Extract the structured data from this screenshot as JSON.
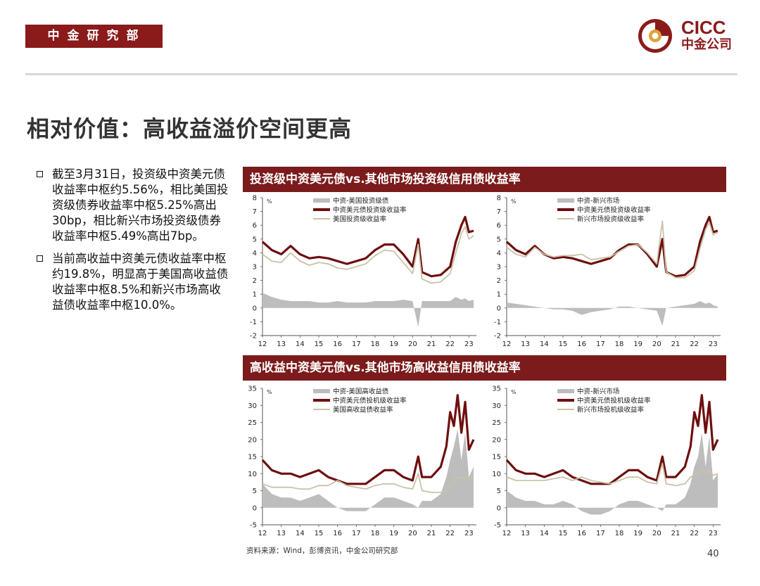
{
  "header": {
    "badge_text": "中金研究部",
    "logo_en": "CICC",
    "logo_cn": "中金公司"
  },
  "page_title": "相对价值：高收益溢价空间更高",
  "bullets": [
    "截至3月31日，投资级中资美元债收益率中枢约5.56%，相比美国投资级债券收益率中枢5.25%高出30bp，相比新兴市场投资级债券收益率中枢5.49%高出7bp。",
    "当前高收益中资美元债收益率中枢约19.8%，明显高于美国高收益债收益率中枢8.5%和新兴市场高收益债收益率中枢10.0%。"
  ],
  "panels": {
    "top_title": "投资级中资美元债vs.其他市场投资级信用债收益率",
    "bottom_title": "高收益中资美元债vs.其他市场高收益信用债收益率"
  },
  "footer": {
    "source": "资料来源：Wind，彭博资讯，中金公司研究部",
    "page_number": "40"
  },
  "colors": {
    "brand": "#8b1a1a",
    "china_line": "#6e0f0f",
    "other_line": "#c9c2a8",
    "spread_area": "#bdbdbd"
  },
  "chart_data": [
    {
      "type": "line",
      "unit": "%",
      "ylim": [
        -2,
        8
      ],
      "yticks": [
        -2,
        -1,
        0,
        1,
        2,
        3,
        4,
        5,
        6,
        7,
        8
      ],
      "xticks": [
        "12",
        "13",
        "14",
        "15",
        "16",
        "17",
        "18",
        "19",
        "20",
        "21",
        "22",
        "23"
      ],
      "x": [
        12,
        12.5,
        13,
        13.5,
        14,
        14.5,
        15,
        15.5,
        16,
        16.5,
        17,
        17.5,
        18,
        18.5,
        19,
        19.5,
        20,
        20.3,
        20.5,
        21,
        21.5,
        22,
        22.3,
        22.6,
        22.8,
        23,
        23.25
      ],
      "series": [
        {
          "name": "中资-美国投资级债",
          "kind": "area",
          "values": [
            1.1,
            0.8,
            0.6,
            0.5,
            0.5,
            0.5,
            0.4,
            0.4,
            0.5,
            0.4,
            0.4,
            0.4,
            0.5,
            0.5,
            0.5,
            0.6,
            0.5,
            -1.4,
            0.5,
            0.5,
            0.5,
            0.5,
            0.8,
            0.6,
            0.7,
            0.5,
            0.6
          ]
        },
        {
          "name": "中资美元债投资级收益率",
          "kind": "line",
          "values": [
            4.8,
            4.2,
            3.9,
            4.5,
            3.9,
            3.6,
            3.7,
            3.6,
            3.4,
            3.2,
            3.4,
            3.6,
            4.2,
            4.6,
            4.6,
            3.9,
            3.0,
            5.0,
            2.6,
            2.3,
            2.4,
            3.0,
            4.8,
            6.0,
            6.6,
            5.5,
            5.6
          ]
        },
        {
          "name": "美国投资级收益率",
          "kind": "line",
          "values": [
            3.9,
            3.4,
            3.3,
            4.0,
            3.4,
            3.1,
            3.3,
            3.2,
            2.9,
            2.8,
            3.0,
            3.2,
            3.8,
            4.2,
            4.1,
            3.3,
            2.5,
            4.6,
            2.1,
            1.8,
            1.9,
            2.5,
            4.0,
            5.4,
            5.9,
            5.0,
            5.25
          ]
        }
      ]
    },
    {
      "type": "line",
      "unit": "%",
      "ylim": [
        -2,
        8
      ],
      "yticks": [
        -2,
        -1,
        0,
        1,
        2,
        3,
        4,
        5,
        6,
        7,
        8
      ],
      "xticks": [
        "12",
        "13",
        "14",
        "15",
        "16",
        "17",
        "18",
        "19",
        "20",
        "21",
        "22",
        "23"
      ],
      "x": [
        12,
        12.5,
        13,
        13.5,
        14,
        14.5,
        15,
        15.5,
        16,
        16.5,
        17,
        17.5,
        18,
        18.5,
        19,
        19.5,
        20,
        20.3,
        20.5,
        21,
        21.5,
        22,
        22.3,
        22.6,
        22.8,
        23,
        23.25
      ],
      "series": [
        {
          "name": "中资-新兴市场",
          "kind": "area",
          "values": [
            0.4,
            0.3,
            0.2,
            0.1,
            0.0,
            -0.1,
            -0.1,
            -0.2,
            -0.5,
            -0.3,
            -0.2,
            -0.1,
            0.1,
            0.1,
            0.0,
            -0.1,
            -0.2,
            -1.3,
            0.0,
            0.1,
            0.2,
            0.3,
            0.5,
            0.3,
            0.4,
            0.2,
            0.1
          ]
        },
        {
          "name": "中资美元债投资级收益率",
          "kind": "line",
          "values": [
            4.8,
            4.2,
            3.9,
            4.5,
            3.9,
            3.6,
            3.7,
            3.6,
            3.4,
            3.2,
            3.4,
            3.6,
            4.2,
            4.6,
            4.6,
            3.9,
            3.0,
            5.0,
            2.6,
            2.3,
            2.4,
            3.0,
            4.8,
            6.0,
            6.6,
            5.5,
            5.6
          ]
        },
        {
          "name": "新兴市场投资级收益率",
          "kind": "line",
          "values": [
            4.4,
            3.9,
            3.7,
            4.4,
            3.9,
            3.7,
            3.8,
            3.8,
            3.9,
            3.5,
            3.6,
            3.7,
            4.1,
            4.5,
            4.6,
            4.0,
            3.2,
            6.3,
            2.6,
            2.2,
            2.2,
            2.7,
            4.3,
            5.7,
            6.2,
            5.3,
            5.49
          ]
        }
      ]
    },
    {
      "type": "line",
      "unit": "%",
      "ylim": [
        -5,
        35
      ],
      "yticks": [
        -5,
        0,
        5,
        10,
        15,
        20,
        25,
        30,
        35
      ],
      "xticks": [
        "12",
        "13",
        "14",
        "15",
        "16",
        "17",
        "18",
        "19",
        "20",
        "21",
        "22",
        "23"
      ],
      "x": [
        12,
        12.5,
        13,
        13.5,
        14,
        14.5,
        15,
        15.5,
        16,
        16.5,
        17,
        17.5,
        18,
        18.5,
        19,
        19.5,
        20,
        20.3,
        20.5,
        21,
        21.5,
        21.8,
        22,
        22.2,
        22.4,
        22.6,
        22.8,
        23,
        23.25
      ],
      "series": [
        {
          "name": "中资-美国高收益债",
          "kind": "area",
          "values": [
            7,
            4,
            3,
            3,
            2,
            3,
            4,
            2,
            0,
            -1,
            -1,
            -1,
            1,
            3,
            3,
            2,
            1,
            0,
            2,
            2,
            4,
            9,
            14,
            18,
            23,
            14,
            22,
            9,
            12
          ]
        },
        {
          "name": "中资美元债投机级收益率",
          "kind": "line",
          "values": [
            14,
            11,
            10,
            10,
            9,
            10,
            11,
            9,
            8,
            7,
            7,
            7,
            9,
            11,
            11,
            9,
            8,
            15,
            9,
            9,
            12,
            18,
            28,
            24,
            33,
            22,
            31,
            17,
            20
          ]
        },
        {
          "name": "美国高收益债收益率",
          "kind": "line",
          "values": [
            7,
            6,
            6,
            6,
            5.5,
            5.5,
            6.5,
            6.5,
            8,
            6.5,
            6,
            5.5,
            6.5,
            7,
            7,
            6,
            5.5,
            10,
            5,
            4.5,
            4.5,
            5,
            6.5,
            8,
            9,
            8.5,
            9,
            8.5,
            8.5
          ]
        }
      ]
    },
    {
      "type": "line",
      "unit": "%",
      "ylim": [
        -5,
        35
      ],
      "yticks": [
        -5,
        0,
        5,
        10,
        15,
        20,
        25,
        30,
        35
      ],
      "xticks": [
        "12",
        "13",
        "14",
        "15",
        "16",
        "17",
        "18",
        "19",
        "20",
        "21",
        "22",
        "23"
      ],
      "x": [
        12,
        12.5,
        13,
        13.5,
        14,
        14.5,
        15,
        15.5,
        16,
        16.5,
        17,
        17.5,
        18,
        18.5,
        19,
        19.5,
        20,
        20.3,
        20.5,
        21,
        21.5,
        21.8,
        22,
        22.2,
        22.4,
        22.6,
        22.8,
        23,
        23.25
      ],
      "series": [
        {
          "name": "中资-新兴市场",
          "kind": "area",
          "values": [
            5,
            3,
            2,
            2,
            1,
            1,
            2,
            1,
            -1,
            -2,
            -2,
            -1,
            1,
            2,
            2,
            1,
            0,
            -1,
            1,
            1,
            3,
            7,
            12,
            15,
            22,
            12,
            21,
            8,
            10
          ]
        },
        {
          "name": "中资美元债投机级收益率",
          "kind": "line",
          "values": [
            14,
            11,
            10,
            10,
            9,
            10,
            11,
            9,
            8,
            7,
            7,
            7,
            9,
            11,
            11,
            9,
            8,
            15,
            9,
            9,
            12,
            18,
            28,
            24,
            33,
            22,
            31,
            17,
            20
          ]
        },
        {
          "name": "新兴市场投机级收益率",
          "kind": "line",
          "values": [
            9,
            8,
            8,
            8,
            8,
            8.5,
            9,
            8,
            9,
            8,
            7.5,
            7,
            8,
            9,
            9,
            7.5,
            7,
            13,
            7,
            6.5,
            7,
            9,
            9.5,
            10,
            11,
            10,
            11,
            9.5,
            10
          ]
        }
      ]
    }
  ]
}
